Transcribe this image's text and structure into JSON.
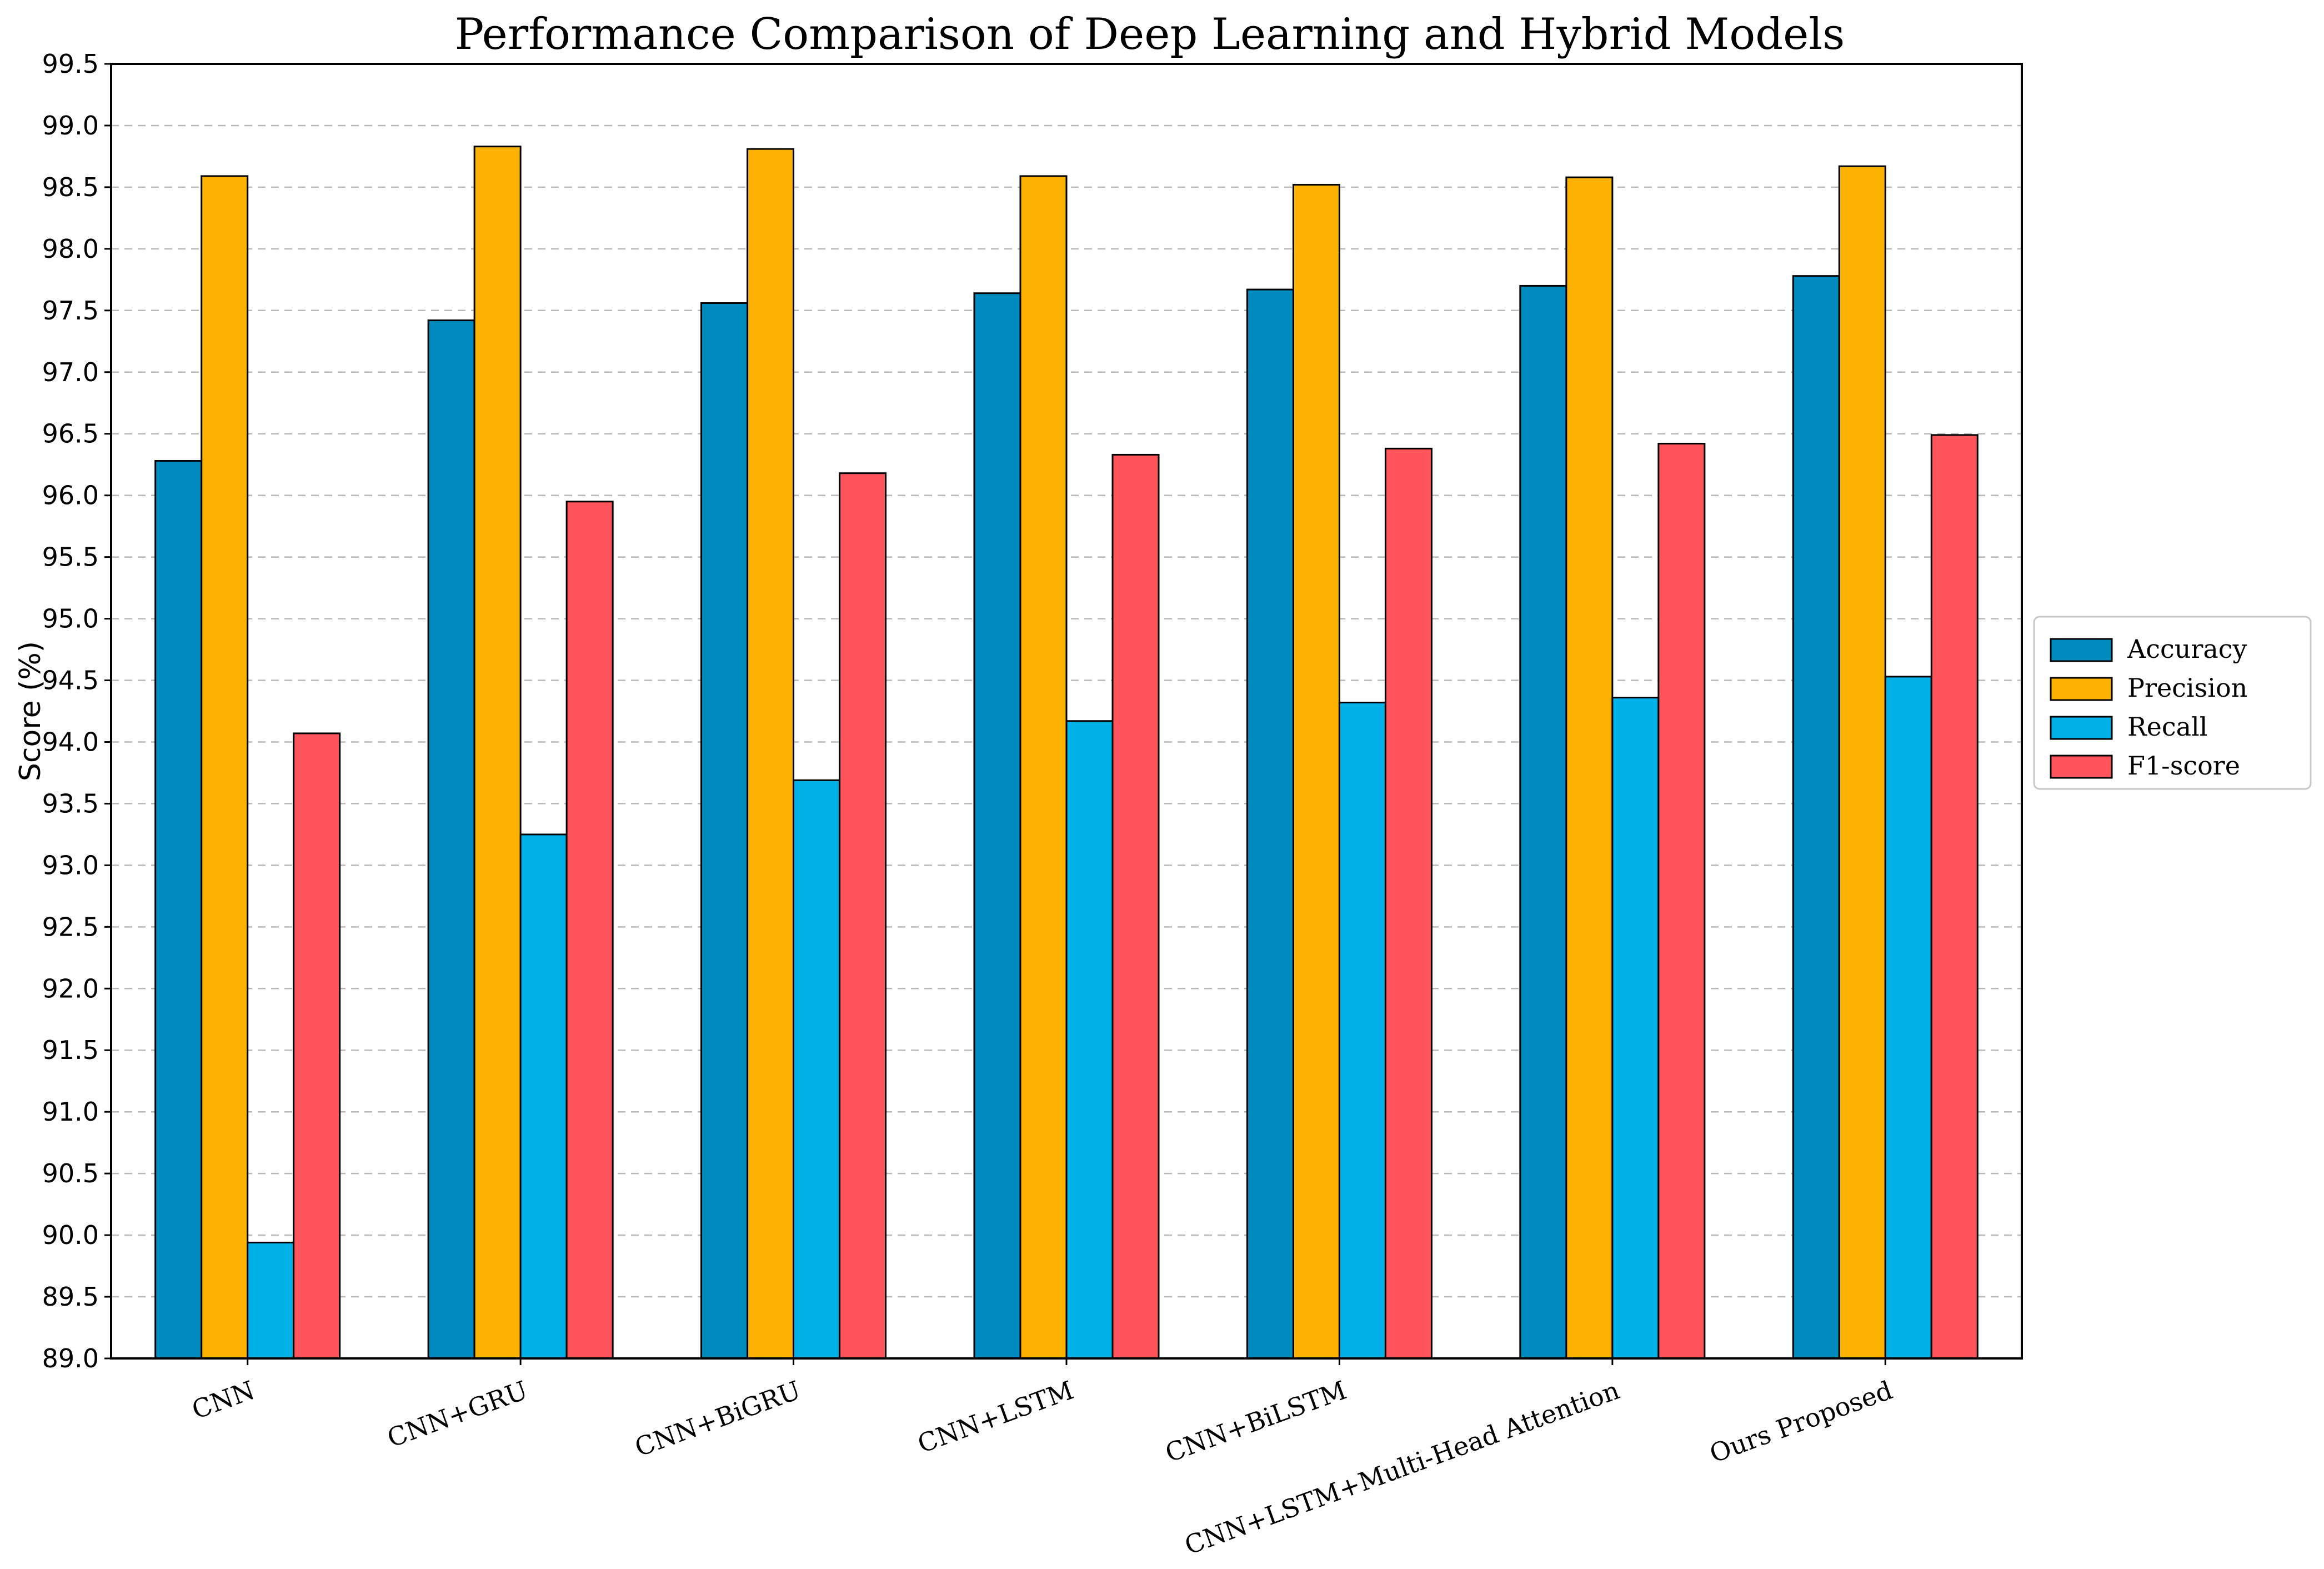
{
  "chart_data": {
    "type": "bar",
    "title": "Performance Comparison of Deep Learning and Hybrid Models",
    "xlabel": "",
    "ylabel": "Score (%)",
    "ylim": [
      89.0,
      99.5
    ],
    "ytick_step": 0.5,
    "yticks": [
      "89.0",
      "89.5",
      "90.0",
      "90.5",
      "91.0",
      "91.5",
      "92.0",
      "92.5",
      "93.0",
      "93.5",
      "94.0",
      "94.5",
      "95.0",
      "95.5",
      "96.0",
      "96.5",
      "97.0",
      "97.5",
      "98.0",
      "98.5",
      "99.0",
      "99.5"
    ],
    "grid": "y-dashed",
    "legend_position": "right-center",
    "categories": [
      "CNN",
      "CNN+GRU",
      "CNN+BiGRU",
      "CNN+LSTM",
      "CNN+BiLSTM",
      "CNN+LSTM+Multi-Head Attention",
      "Ours Proposed"
    ],
    "series": [
      {
        "name": "Accuracy",
        "color": "#008bbf",
        "values": [
          96.28,
          97.42,
          97.56,
          97.64,
          97.67,
          97.7,
          97.78
        ]
      },
      {
        "name": "Precision",
        "color": "#fdb100",
        "values": [
          98.59,
          98.83,
          98.81,
          98.59,
          98.52,
          98.58,
          98.67
        ]
      },
      {
        "name": "Recall",
        "color": "#00b1e8",
        "values": [
          89.94,
          93.25,
          93.69,
          94.17,
          94.32,
          94.36,
          94.53
        ]
      },
      {
        "name": "F1-score",
        "color": "#ff545c",
        "values": [
          94.07,
          95.95,
          96.18,
          96.33,
          96.38,
          96.42,
          96.49
        ]
      }
    ]
  }
}
